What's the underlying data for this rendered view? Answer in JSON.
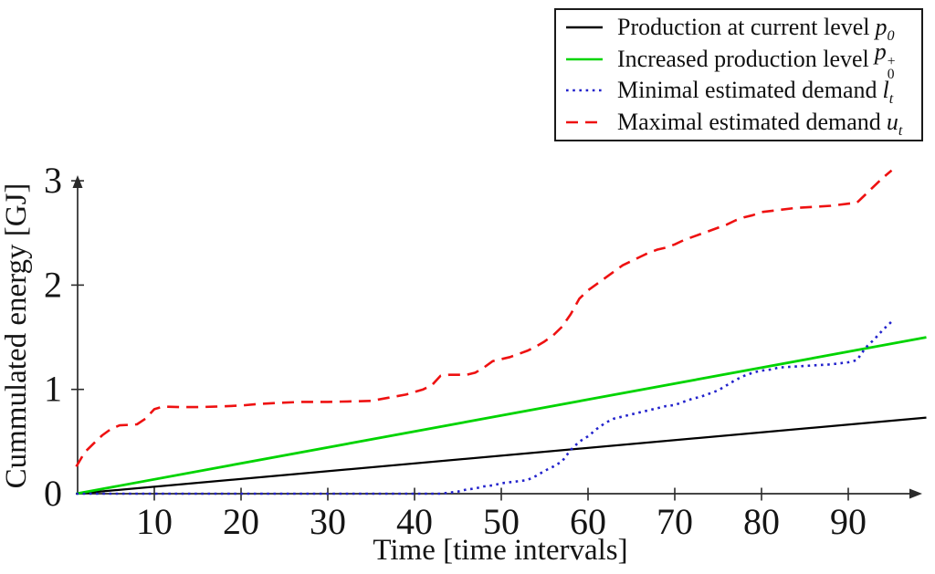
{
  "figure": {
    "xlabel": "Time [time intervals]",
    "ylabel": "Cummulated energy [GJ]",
    "x_ticks": [
      10,
      20,
      30,
      40,
      50,
      60,
      70,
      80,
      90
    ],
    "y_ticks": [
      0,
      1,
      2,
      3
    ],
    "axis_color": "#2b2b2b"
  },
  "legend": {
    "position": "top-right",
    "items": [
      {
        "label": "Production at current level",
        "math_base": "p",
        "math_sub": "0",
        "math_sup": "",
        "color": "#000000",
        "dash": "solid"
      },
      {
        "label": "Increased production level",
        "math_base": "p",
        "math_sub": "0",
        "math_sup": "+",
        "color": "#00d400",
        "dash": "solid"
      },
      {
        "label": "Minimal estimated demand",
        "math_base": "l",
        "math_sub": "t",
        "math_sup": "",
        "color": "#2222cc",
        "dash": "dotted"
      },
      {
        "label": "Maximal estimated demand",
        "math_base": "u",
        "math_sub": "t",
        "math_sup": "",
        "color": "#ee1111",
        "dash": "dashed"
      }
    ]
  },
  "chart_data": {
    "type": "line",
    "title": "",
    "xlabel": "Time [time intervals]",
    "ylabel": "Cummulated energy [GJ]",
    "xlim": [
      0,
      100
    ],
    "ylim": [
      0,
      3.2
    ],
    "x_ticks": [
      10,
      20,
      30,
      40,
      50,
      60,
      70,
      80,
      90
    ],
    "y_ticks": [
      0,
      1,
      2,
      3
    ],
    "grid": false,
    "legend_position": "top-right",
    "series": [
      {
        "name": "Production at current level p₀",
        "color": "#000000",
        "style": "solid",
        "width": 2.2,
        "points": [
          [
            1,
            0
          ],
          [
            99,
            0.73
          ]
        ]
      },
      {
        "name": "Increased production level p₀⁺",
        "color": "#00d400",
        "style": "solid",
        "width": 2.8,
        "points": [
          [
            1,
            0
          ],
          [
            99,
            1.5
          ]
        ]
      },
      {
        "name": "Minimal estimated demand lₜ",
        "color": "#2222cc",
        "style": "dotted",
        "width": 2.6,
        "points": [
          [
            1,
            0
          ],
          [
            10,
            0
          ],
          [
            20,
            0
          ],
          [
            30,
            0
          ],
          [
            40,
            0
          ],
          [
            43,
            0
          ],
          [
            44,
            0.01
          ],
          [
            45,
            0.02
          ],
          [
            46,
            0.04
          ],
          [
            47,
            0.05
          ],
          [
            48,
            0.07
          ],
          [
            49,
            0.08
          ],
          [
            50,
            0.1
          ],
          [
            51,
            0.11
          ],
          [
            52,
            0.12
          ],
          [
            53,
            0.13
          ],
          [
            54,
            0.17
          ],
          [
            55,
            0.22
          ],
          [
            56,
            0.26
          ],
          [
            57,
            0.31
          ],
          [
            58,
            0.42
          ],
          [
            59,
            0.5
          ],
          [
            60,
            0.55
          ],
          [
            61,
            0.62
          ],
          [
            62,
            0.68
          ],
          [
            63,
            0.72
          ],
          [
            64,
            0.74
          ],
          [
            65,
            0.76
          ],
          [
            66,
            0.78
          ],
          [
            67,
            0.8
          ],
          [
            68,
            0.82
          ],
          [
            69,
            0.84
          ],
          [
            70,
            0.85
          ],
          [
            71,
            0.88
          ],
          [
            72,
            0.91
          ],
          [
            73,
            0.93
          ],
          [
            74,
            0.96
          ],
          [
            75,
            0.99
          ],
          [
            76,
            1.04
          ],
          [
            77,
            1.09
          ],
          [
            78,
            1.13
          ],
          [
            79,
            1.16
          ],
          [
            80,
            1.18
          ],
          [
            81,
            1.19
          ],
          [
            82,
            1.21
          ],
          [
            84,
            1.22
          ],
          [
            86,
            1.23
          ],
          [
            88,
            1.24
          ],
          [
            90,
            1.26
          ],
          [
            91,
            1.28
          ],
          [
            92,
            1.4
          ],
          [
            93,
            1.48
          ],
          [
            94,
            1.57
          ],
          [
            95,
            1.65
          ]
        ]
      },
      {
        "name": "Maximal estimated demand uₜ",
        "color": "#ee1111",
        "style": "dashed",
        "width": 2.6,
        "points": [
          [
            1,
            0.26
          ],
          [
            2,
            0.4
          ],
          [
            3,
            0.48
          ],
          [
            4,
            0.56
          ],
          [
            5,
            0.62
          ],
          [
            6,
            0.655
          ],
          [
            7,
            0.66
          ],
          [
            8,
            0.665
          ],
          [
            9,
            0.72
          ],
          [
            10,
            0.81
          ],
          [
            11,
            0.835
          ],
          [
            13,
            0.83
          ],
          [
            15,
            0.83
          ],
          [
            17,
            0.835
          ],
          [
            20,
            0.845
          ],
          [
            22,
            0.86
          ],
          [
            24,
            0.87
          ],
          [
            27,
            0.88
          ],
          [
            30,
            0.88
          ],
          [
            33,
            0.885
          ],
          [
            35,
            0.89
          ],
          [
            37,
            0.92
          ],
          [
            39,
            0.95
          ],
          [
            41,
            1.0
          ],
          [
            42,
            1.04
          ],
          [
            43,
            1.13
          ],
          [
            44,
            1.14
          ],
          [
            46,
            1.14
          ],
          [
            47,
            1.16
          ],
          [
            48,
            1.21
          ],
          [
            49,
            1.27
          ],
          [
            51,
            1.31
          ],
          [
            53,
            1.37
          ],
          [
            54,
            1.41
          ],
          [
            55,
            1.46
          ],
          [
            56,
            1.52
          ],
          [
            57,
            1.6
          ],
          [
            58,
            1.72
          ],
          [
            59,
            1.87
          ],
          [
            60,
            1.95
          ],
          [
            61,
            2.01
          ],
          [
            62,
            2.07
          ],
          [
            63,
            2.13
          ],
          [
            64,
            2.19
          ],
          [
            65,
            2.23
          ],
          [
            66,
            2.27
          ],
          [
            67,
            2.31
          ],
          [
            68,
            2.34
          ],
          [
            69,
            2.36
          ],
          [
            70,
            2.39
          ],
          [
            71,
            2.43
          ],
          [
            72,
            2.46
          ],
          [
            73,
            2.49
          ],
          [
            74,
            2.52
          ],
          [
            75,
            2.55
          ],
          [
            76,
            2.58
          ],
          [
            77,
            2.62
          ],
          [
            78,
            2.65
          ],
          [
            79,
            2.67
          ],
          [
            80,
            2.7
          ],
          [
            82,
            2.72
          ],
          [
            84,
            2.74
          ],
          [
            86,
            2.75
          ],
          [
            88,
            2.76
          ],
          [
            90,
            2.78
          ],
          [
            91,
            2.79
          ],
          [
            92,
            2.87
          ],
          [
            93,
            2.95
          ],
          [
            94,
            3.03
          ],
          [
            95,
            3.1
          ]
        ]
      }
    ]
  }
}
